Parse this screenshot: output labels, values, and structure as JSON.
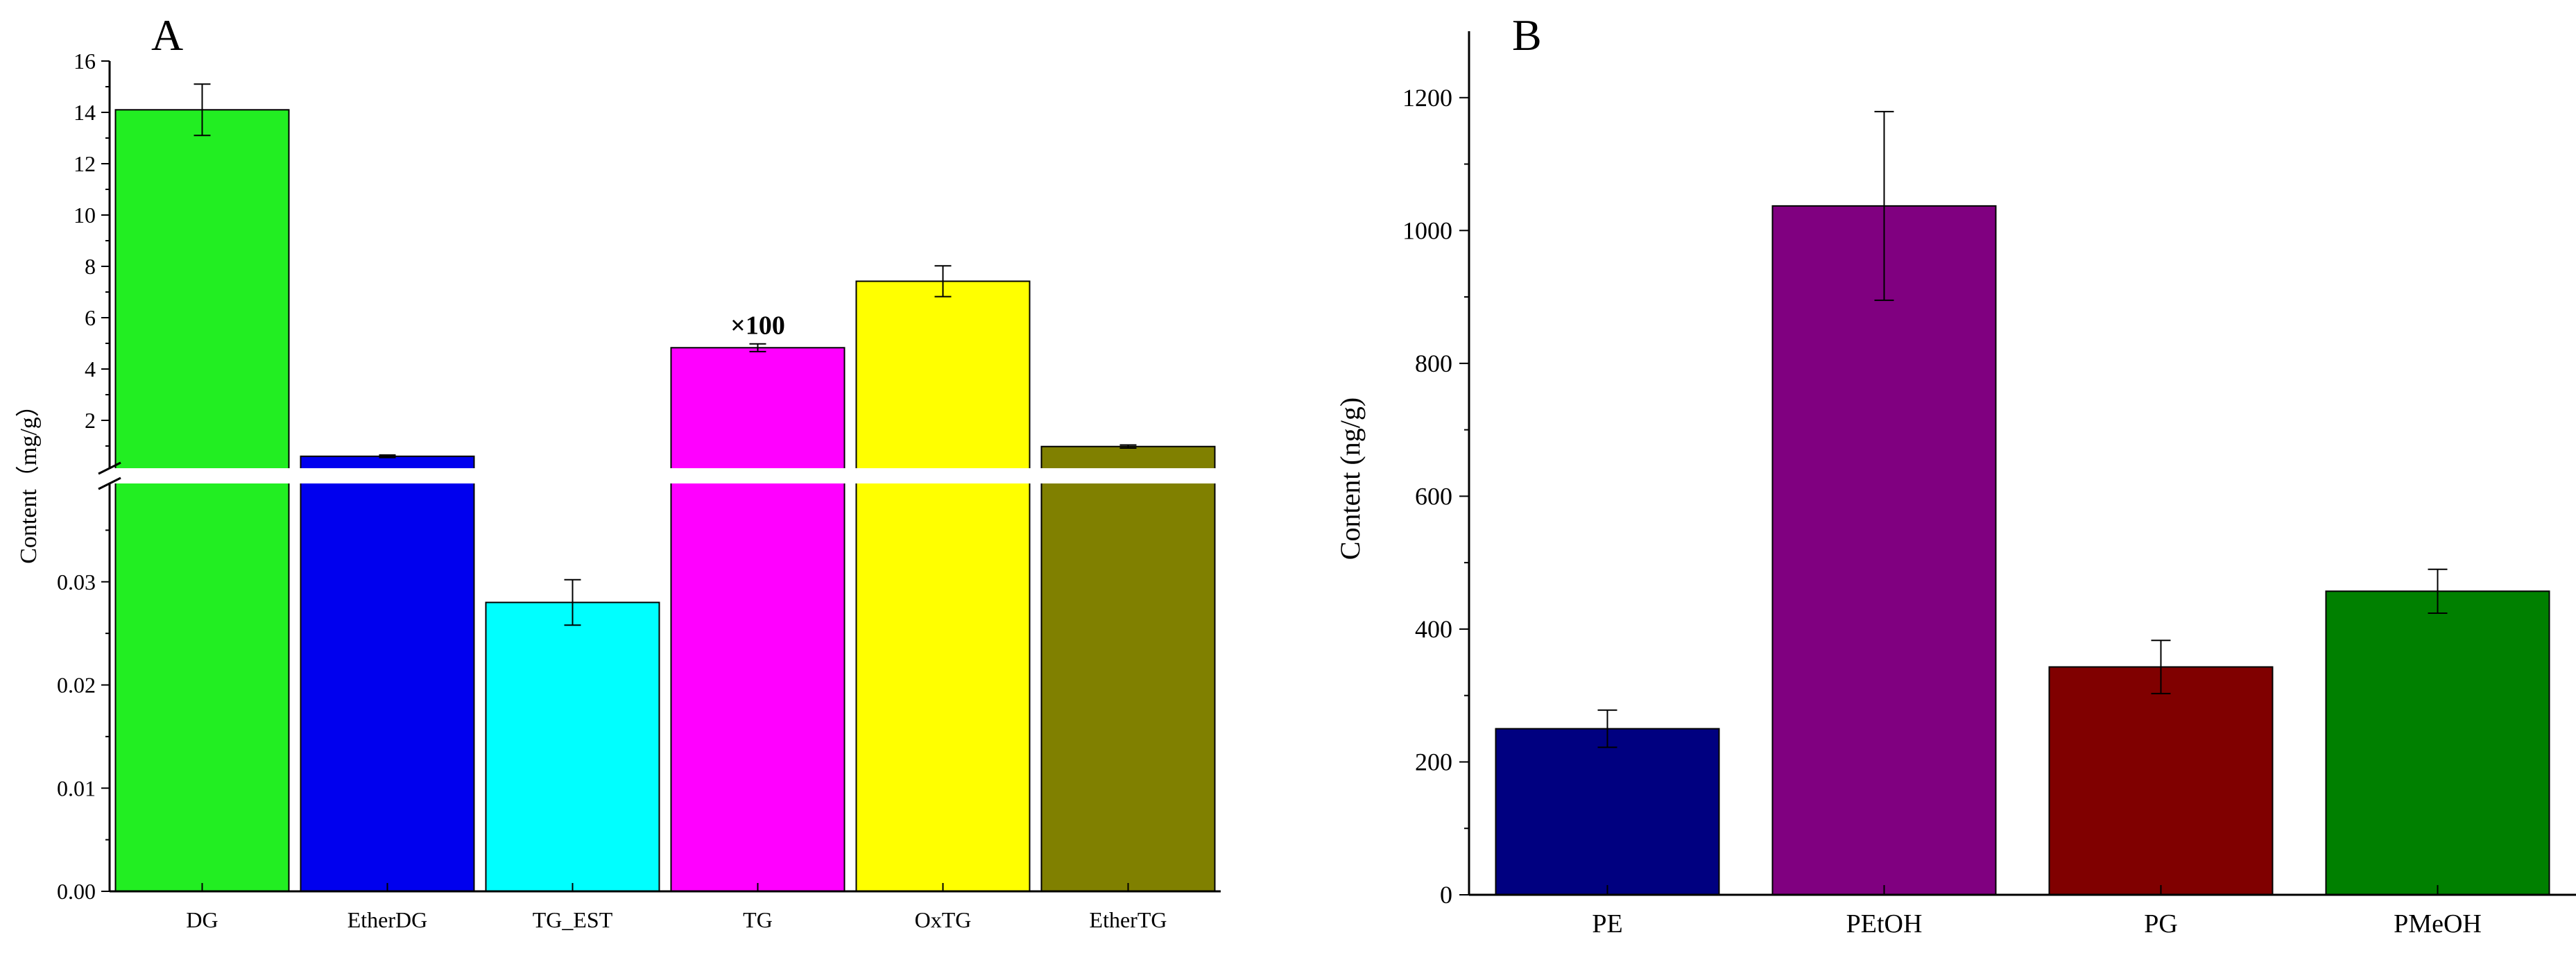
{
  "chart_data": [
    {
      "panel_label": "A",
      "type": "bar",
      "axis_break": true,
      "ylabel": "Content（mg/g）",
      "categories": [
        "DG",
        "EtherDG",
        "TG_EST",
        "TG",
        "OxTG",
        "EtherTG"
      ],
      "values": [
        14.1,
        0.6,
        0.028,
        4.83,
        7.42,
        0.98
      ],
      "errors": [
        1.0,
        0.05,
        0.0022,
        0.15,
        0.6,
        0.06
      ],
      "colors": [
        "#22EE22",
        "#0000EE",
        "#00FFFF",
        "#FF00FF",
        "#FFFF00",
        "#808000"
      ],
      "annotations": [
        {
          "category": "TG",
          "text": "×100"
        }
      ],
      "upper_segment": {
        "ylim": [
          0,
          16
        ],
        "ticks": [
          "2",
          "4",
          "6",
          "8",
          "10",
          "12",
          "14",
          "16"
        ]
      },
      "lower_segment": {
        "ylim": [
          0,
          0.04
        ],
        "ticks": [
          "0.00",
          "0.01",
          "0.02",
          "0.03"
        ]
      }
    },
    {
      "panel_label": "B",
      "type": "bar",
      "ylabel": "Content (ng/g)",
      "categories": [
        "PE",
        "PEtOH",
        "PG",
        "PMeOH"
      ],
      "values": [
        250,
        1037,
        343,
        457
      ],
      "errors": [
        28,
        142,
        40,
        33
      ],
      "colors": [
        "#000080",
        "#800080",
        "#800000",
        "#008000"
      ],
      "ylim": [
        0,
        1300
      ],
      "ticks": [
        "0",
        "200",
        "400",
        "600",
        "800",
        "1000",
        "1200"
      ]
    }
  ]
}
